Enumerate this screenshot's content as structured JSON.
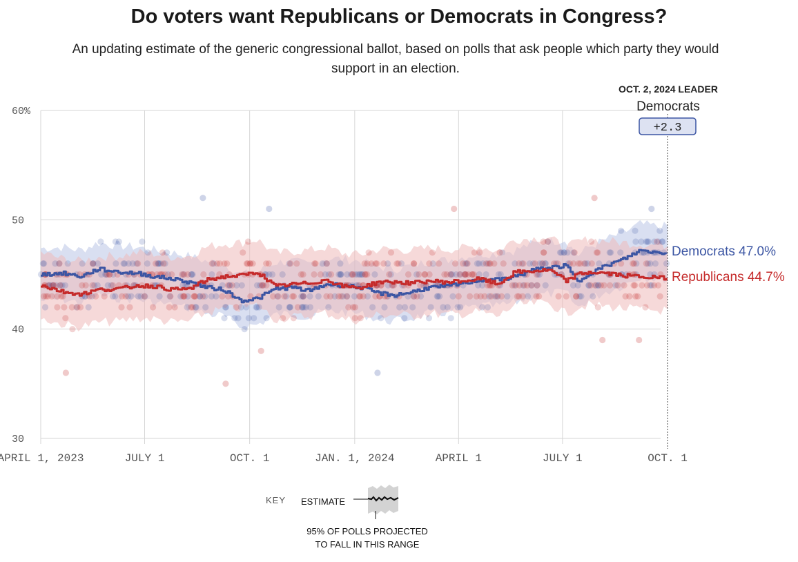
{
  "header": {
    "title": "Do voters want Republicans or Democrats in Congress?",
    "subtitle": "An updating estimate of the generic congressional ballot, based on polls that ask people which party they would support in an election."
  },
  "colors": {
    "dem": "#3b55a3",
    "rep": "#c52a2a",
    "dem_light": "#b9c4e6",
    "rep_light": "#efb9b9",
    "grid": "#d6d6d6"
  },
  "leader": {
    "date_label": "OCT. 2, 2024 LEADER",
    "party": "Democrats",
    "margin": "+2.3"
  },
  "key": {
    "label": "KEY",
    "estimate_label": "ESTIMATE",
    "range_line1": "95% OF POLLS PROJECTED",
    "range_line2": "TO FALL IN THIS RANGE"
  },
  "chart_data": {
    "type": "line",
    "title": "Do voters want Republicans or Democrats in Congress?",
    "xlabel": "",
    "ylabel": "",
    "ylim": [
      30,
      60
    ],
    "yticks": [
      30,
      40,
      50,
      60
    ],
    "ytick_labels": [
      "30",
      "40",
      "50",
      "60%"
    ],
    "xlim_days": [
      0,
      549
    ],
    "xticks": [
      {
        "day": 0,
        "label": "APRIL 1, 2023"
      },
      {
        "day": 91,
        "label": "JULY 1"
      },
      {
        "day": 183,
        "label": "OCT. 1"
      },
      {
        "day": 275,
        "label": "JAN. 1, 2024"
      },
      {
        "day": 366,
        "label": "APRIL 1"
      },
      {
        "day": 457,
        "label": "JULY 1"
      },
      {
        "day": 549,
        "label": "OCT. 1"
      }
    ],
    "series": [
      {
        "name": "Democrats",
        "end_label": "Democrats 47.0%",
        "x": [
          0,
          20,
          35,
          50,
          70,
          85,
          100,
          115,
          130,
          145,
          160,
          175,
          190,
          205,
          220,
          235,
          250,
          265,
          280,
          295,
          310,
          325,
          340,
          355,
          370,
          385,
          400,
          415,
          430,
          445,
          460,
          470,
          480,
          495,
          510,
          525,
          540,
          549
        ],
        "values": [
          45.0,
          45.1,
          44.8,
          45.5,
          45.2,
          45.1,
          44.8,
          44.6,
          44.3,
          43.8,
          43.6,
          42.6,
          42.8,
          43.7,
          43.8,
          43.5,
          44.1,
          44.0,
          43.8,
          43.3,
          43.1,
          43.4,
          43.8,
          43.9,
          44.2,
          44.5,
          44.5,
          44.8,
          45.4,
          45.6,
          45.8,
          44.3,
          45.1,
          45.8,
          46.4,
          47.2,
          47.0,
          47.0
        ],
        "band": 2.4
      },
      {
        "name": "Republicans",
        "end_label": "Republicans 44.7%",
        "x": [
          0,
          20,
          35,
          50,
          70,
          85,
          100,
          115,
          130,
          145,
          160,
          175,
          190,
          205,
          220,
          235,
          250,
          265,
          280,
          295,
          310,
          325,
          340,
          355,
          370,
          385,
          400,
          415,
          430,
          445,
          460,
          470,
          480,
          495,
          510,
          525,
          540,
          549
        ],
        "values": [
          44.0,
          43.4,
          43.2,
          43.6,
          43.7,
          44.0,
          43.9,
          43.6,
          43.7,
          44.5,
          44.8,
          44.9,
          45.2,
          43.9,
          44.1,
          44.2,
          44.5,
          43.9,
          43.8,
          44.3,
          44.3,
          44.2,
          44.4,
          44.3,
          44.4,
          44.6,
          44.1,
          45.2,
          45.3,
          45.4,
          44.4,
          45.0,
          45.2,
          45.1,
          44.9,
          44.8,
          44.7,
          44.7
        ],
        "band": 3.0
      }
    ],
    "polls_note": "Individual poll results shown as translucent dots (approx. 300+ per party), mostly between 40 and 50",
    "outlier_polls": [
      {
        "party": "Democrats",
        "day": 142,
        "value": 52
      },
      {
        "party": "Democrats",
        "day": 200,
        "value": 51
      },
      {
        "party": "Democrats",
        "day": 295,
        "value": 36
      },
      {
        "party": "Democrats",
        "day": 535,
        "value": 51
      },
      {
        "party": "Republicans",
        "day": 22,
        "value": 36
      },
      {
        "party": "Republicans",
        "day": 162,
        "value": 35
      },
      {
        "party": "Republicans",
        "day": 193,
        "value": 38
      },
      {
        "party": "Republicans",
        "day": 362,
        "value": 51
      },
      {
        "party": "Republicans",
        "day": 485,
        "value": 52
      },
      {
        "party": "Republicans",
        "day": 492,
        "value": 39
      },
      {
        "party": "Republicans",
        "day": 524,
        "value": 39
      }
    ]
  }
}
